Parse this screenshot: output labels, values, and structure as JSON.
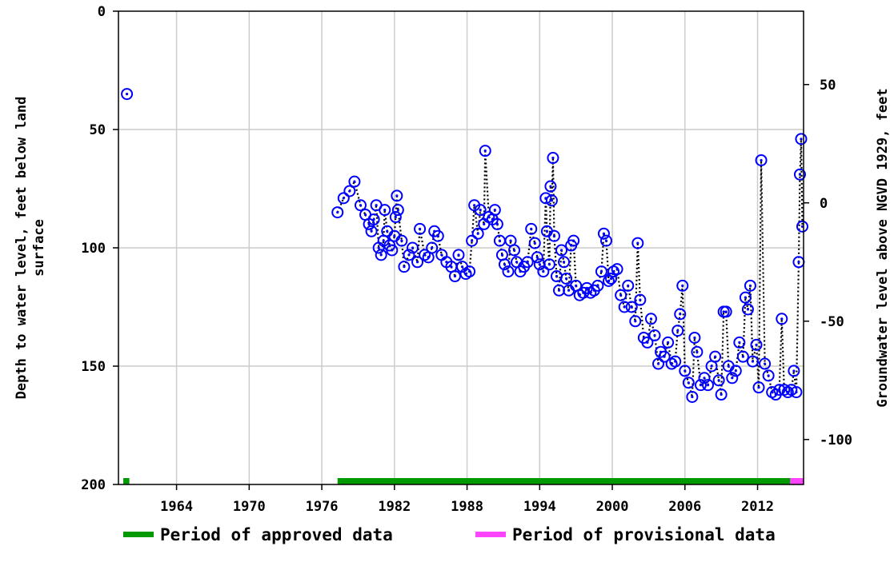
{
  "chart_data": {
    "type": "scatter",
    "title": "",
    "ylabel_left_line1": "Depth to water level, feet below land",
    "ylabel_left_line2": "surface",
    "ylabel_right": "Groundwater level above NGVD 1929, feet",
    "xlim": [
      1959.2,
      2015.8
    ],
    "ylim_left": [
      0,
      200
    ],
    "y_left_inverted": true,
    "ylim_right": [
      -119.0,
      81.0
    ],
    "x_ticks": [
      1964,
      1970,
      1976,
      1982,
      1988,
      1994,
      2000,
      2006,
      2012
    ],
    "x_tick_labels": [
      "1964",
      "1970",
      "1976",
      "1982",
      "1988",
      "1994",
      "2000",
      "2006",
      "2012"
    ],
    "y_left_ticks": [
      0,
      50,
      100,
      150,
      200
    ],
    "y_left_tick_labels": [
      "0",
      "50",
      "100",
      "150",
      "200"
    ],
    "y_right_ticks": [
      50,
      0,
      -50,
      -100
    ],
    "y_right_tick_labels": [
      "50",
      "0",
      "-50",
      "-100"
    ],
    "grid": true,
    "marker": "circle-dot",
    "marker_color": "#0000ff",
    "connector_color": "#000000",
    "series": [
      {
        "name": "",
        "points": [
          [
            1959.9,
            35
          ],
          [
            1977.3,
            85
          ],
          [
            1977.8,
            79
          ],
          [
            1978.3,
            76
          ],
          [
            1978.7,
            72
          ],
          [
            1979.2,
            82
          ],
          [
            1979.6,
            86
          ],
          [
            1979.9,
            90
          ],
          [
            1980.1,
            93
          ],
          [
            1980.3,
            88
          ],
          [
            1980.5,
            82
          ],
          [
            1980.7,
            100
          ],
          [
            1980.9,
            103
          ],
          [
            1981.1,
            97
          ],
          [
            1981.2,
            84
          ],
          [
            1981.4,
            93
          ],
          [
            1981.6,
            99
          ],
          [
            1981.8,
            101
          ],
          [
            1982.0,
            95
          ],
          [
            1982.1,
            87
          ],
          [
            1982.2,
            78
          ],
          [
            1982.3,
            84
          ],
          [
            1982.6,
            97
          ],
          [
            1982.8,
            108
          ],
          [
            1983.2,
            103
          ],
          [
            1983.5,
            100
          ],
          [
            1983.9,
            106
          ],
          [
            1984.1,
            92
          ],
          [
            1984.5,
            103
          ],
          [
            1984.8,
            104
          ],
          [
            1985.1,
            100
          ],
          [
            1985.3,
            93
          ],
          [
            1985.6,
            95
          ],
          [
            1985.9,
            103
          ],
          [
            1986.3,
            106
          ],
          [
            1986.7,
            108
          ],
          [
            1987.0,
            112
          ],
          [
            1987.3,
            103
          ],
          [
            1987.6,
            108
          ],
          [
            1987.9,
            111
          ],
          [
            1988.2,
            110
          ],
          [
            1988.4,
            97
          ],
          [
            1988.6,
            82
          ],
          [
            1988.9,
            94
          ],
          [
            1989.1,
            84
          ],
          [
            1989.4,
            90
          ],
          [
            1989.5,
            59
          ],
          [
            1989.8,
            87
          ],
          [
            1990.1,
            88
          ],
          [
            1990.3,
            84
          ],
          [
            1990.5,
            90
          ],
          [
            1990.7,
            97
          ],
          [
            1990.9,
            103
          ],
          [
            1991.1,
            107
          ],
          [
            1991.4,
            110
          ],
          [
            1991.6,
            97
          ],
          [
            1991.9,
            101
          ],
          [
            1992.1,
            106
          ],
          [
            1992.4,
            110
          ],
          [
            1992.7,
            108
          ],
          [
            1993.0,
            106
          ],
          [
            1993.3,
            92
          ],
          [
            1993.6,
            98
          ],
          [
            1993.8,
            104
          ],
          [
            1994.0,
            107
          ],
          [
            1994.3,
            110
          ],
          [
            1994.5,
            79
          ],
          [
            1994.6,
            93
          ],
          [
            1994.8,
            107
          ],
          [
            1994.9,
            74
          ],
          [
            1995.0,
            80
          ],
          [
            1995.1,
            62
          ],
          [
            1995.2,
            95
          ],
          [
            1995.4,
            112
          ],
          [
            1995.6,
            118
          ],
          [
            1995.8,
            101
          ],
          [
            1996.0,
            106
          ],
          [
            1996.2,
            113
          ],
          [
            1996.4,
            118
          ],
          [
            1996.6,
            99
          ],
          [
            1996.8,
            97
          ],
          [
            1997.0,
            116
          ],
          [
            1997.3,
            120
          ],
          [
            1997.6,
            119
          ],
          [
            1997.9,
            117
          ],
          [
            1998.2,
            119
          ],
          [
            1998.5,
            118
          ],
          [
            1998.8,
            116
          ],
          [
            1999.1,
            110
          ],
          [
            1999.3,
            94
          ],
          [
            1999.5,
            97
          ],
          [
            1999.7,
            114
          ],
          [
            1999.9,
            113
          ],
          [
            2000.1,
            110
          ],
          [
            2000.4,
            109
          ],
          [
            2000.7,
            120
          ],
          [
            2001.0,
            125
          ],
          [
            2001.3,
            116
          ],
          [
            2001.6,
            125
          ],
          [
            2001.9,
            131
          ],
          [
            2002.1,
            98
          ],
          [
            2002.3,
            122
          ],
          [
            2002.6,
            138
          ],
          [
            2002.9,
            140
          ],
          [
            2003.2,
            130
          ],
          [
            2003.5,
            137
          ],
          [
            2003.8,
            149
          ],
          [
            2004.0,
            144
          ],
          [
            2004.3,
            146
          ],
          [
            2004.6,
            140
          ],
          [
            2004.9,
            149
          ],
          [
            2005.2,
            148
          ],
          [
            2005.4,
            135
          ],
          [
            2005.6,
            128
          ],
          [
            2005.8,
            116
          ],
          [
            2006.0,
            152
          ],
          [
            2006.3,
            157
          ],
          [
            2006.6,
            163
          ],
          [
            2006.8,
            138
          ],
          [
            2007.0,
            144
          ],
          [
            2007.3,
            158
          ],
          [
            2007.6,
            155
          ],
          [
            2007.9,
            158
          ],
          [
            2008.2,
            150
          ],
          [
            2008.5,
            146
          ],
          [
            2008.8,
            156
          ],
          [
            2009.0,
            162
          ],
          [
            2009.2,
            127
          ],
          [
            2009.4,
            127
          ],
          [
            2009.6,
            150
          ],
          [
            2009.9,
            155
          ],
          [
            2010.2,
            152
          ],
          [
            2010.5,
            140
          ],
          [
            2010.8,
            146
          ],
          [
            2011.0,
            121
          ],
          [
            2011.2,
            126
          ],
          [
            2011.4,
            116
          ],
          [
            2011.6,
            148
          ],
          [
            2011.9,
            141
          ],
          [
            2012.1,
            159
          ],
          [
            2012.3,
            63
          ],
          [
            2012.6,
            149
          ],
          [
            2012.9,
            154
          ],
          [
            2013.2,
            161
          ],
          [
            2013.5,
            162
          ],
          [
            2013.8,
            160
          ],
          [
            2014.0,
            130
          ],
          [
            2014.2,
            160
          ],
          [
            2014.5,
            161
          ],
          [
            2014.8,
            160
          ],
          [
            2015.0,
            152
          ],
          [
            2015.2,
            161
          ],
          [
            2015.4,
            106
          ],
          [
            2015.5,
            69
          ],
          [
            2015.6,
            54
          ],
          [
            2015.7,
            91
          ]
        ]
      }
    ],
    "periods": [
      {
        "name": "Period of approved data",
        "color": "#009900",
        "ranges": [
          [
            1959.6,
            1960.1
          ],
          [
            1977.3,
            2014.7
          ]
        ]
      },
      {
        "name": "Period of provisional data",
        "color": "#ff44ff",
        "ranges": [
          [
            2014.7,
            2015.8
          ]
        ]
      }
    ],
    "legend_position": "bottom",
    "legend": [
      {
        "label": "Period of approved data",
        "color": "#009900"
      },
      {
        "label": "Period of provisional data",
        "color": "#ff44ff"
      }
    ]
  }
}
